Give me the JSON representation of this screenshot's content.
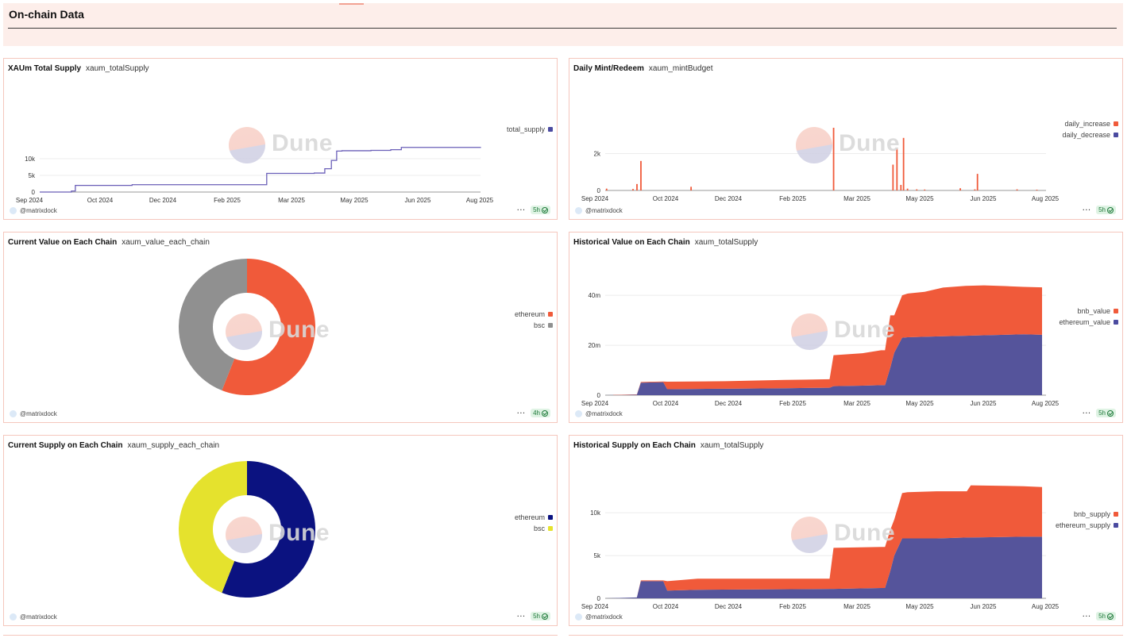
{
  "header": {
    "title": "On-chain Data"
  },
  "footer_user": "@matrixdock",
  "colors": {
    "orange": "#f05a3a",
    "purple": "#5a5a9e",
    "gray": "#909090",
    "navy": "#0b1280",
    "yellow": "#e5e22d",
    "border": "#f5c7bd"
  },
  "months": [
    "Sep 2024",
    "Oct 2024",
    "Dec 2024",
    "Feb 2025",
    "Mar 2025",
    "May 2025",
    "Jun 2025",
    "Aug 2025"
  ],
  "panels": [
    {
      "title": "XAUm Total Supply",
      "query": "xaum_totalSupply",
      "age": "5h",
      "watermark": "Dune",
      "legend": [
        {
          "label": "total_supply",
          "color": "#4b4ba0"
        }
      ],
      "chart_data": {
        "type": "line",
        "ylim": [
          0,
          15000
        ],
        "ticks": [
          "0",
          "5k",
          "10k"
        ],
        "tick_values": [
          0,
          5000,
          10000
        ],
        "series": [
          {
            "name": "total_supply",
            "color": "#6a5fb8",
            "x": [
              "2024-09-01",
              "2024-09-20",
              "2024-09-25",
              "2024-09-28",
              "2024-10-08",
              "2024-11-10",
              "2025-02-18",
              "2025-02-20",
              "2025-03-28",
              "2025-04-05",
              "2025-04-10",
              "2025-04-14",
              "2025-04-18",
              "2025-05-10",
              "2025-05-25",
              "2025-06-02",
              "2025-08-01"
            ],
            "values": [
              0,
              0,
              300,
              2000,
              2000,
              2200,
              2200,
              5600,
              5700,
              7000,
              9500,
              12300,
              12400,
              12500,
              12700,
              13400,
              13500
            ]
          }
        ]
      }
    },
    {
      "title": "Daily Mint/Redeem",
      "query": "xaum_mintBudget",
      "age": "5h",
      "watermark": "Dune",
      "legend": [
        {
          "label": "daily_increase",
          "color": "#f05a3a"
        },
        {
          "label": "daily_decrease",
          "color": "#4b4ba0"
        }
      ],
      "chart_data": {
        "type": "bar",
        "ylim": [
          0,
          3400
        ],
        "ticks": [
          "0",
          "2k"
        ],
        "tick_values": [
          0,
          2000
        ],
        "series": [
          {
            "name": "daily_increase",
            "color": "#f05a3a",
            "x": [
              "2024-09-02",
              "2024-09-22",
              "2024-09-25",
              "2024-09-28",
              "2024-11-05",
              "2025-02-21",
              "2025-04-07",
              "2025-04-10",
              "2025-04-13",
              "2025-04-15",
              "2025-04-18",
              "2025-04-25",
              "2025-05-01",
              "2025-05-28",
              "2025-06-08",
              "2025-06-10",
              "2025-07-10",
              "2025-07-25"
            ],
            "values": [
              100,
              80,
              350,
              1600,
              200,
              3400,
              1400,
              2300,
              300,
              2850,
              100,
              60,
              50,
              120,
              60,
              900,
              60,
              40
            ]
          }
        ]
      }
    },
    {
      "title": "Current Value on Each Chain",
      "query": "xaum_value_each_chain",
      "age": "4h",
      "watermark": "Dune",
      "legend": [
        {
          "label": "ethereum",
          "color": "#f05a3a"
        },
        {
          "label": "bsc",
          "color": "#909090"
        }
      ],
      "chart_data": {
        "type": "pie",
        "donut": true,
        "labels": [
          "ethereum",
          "bsc"
        ],
        "values": [
          56,
          44
        ],
        "colors": [
          "#f05a3a",
          "#909090"
        ]
      }
    },
    {
      "title": "Historical Value on Each Chain",
      "query": "xaum_totalSupply",
      "age": "5h",
      "watermark": "Dune",
      "legend": [
        {
          "label": "bnb_value",
          "color": "#f05a3a"
        },
        {
          "label": "ethereum_value",
          "color": "#4b4ba0"
        }
      ],
      "chart_data": {
        "type": "area",
        "stacked": true,
        "ylim": [
          0,
          48000000
        ],
        "ticks": [
          "0",
          "20m",
          "40m"
        ],
        "tick_values": [
          0,
          20000000,
          40000000
        ],
        "x": [
          "2024-09-01",
          "2024-09-25",
          "2024-09-28",
          "2024-10-15",
          "2024-10-18",
          "2024-12-01",
          "2025-01-15",
          "2025-02-18",
          "2025-02-21",
          "2025-03-15",
          "2025-03-29",
          "2025-04-01",
          "2025-04-05",
          "2025-04-08",
          "2025-04-14",
          "2025-04-18",
          "2025-05-01",
          "2025-05-15",
          "2025-06-01",
          "2025-06-15",
          "2025-07-01",
          "2025-07-15",
          "2025-07-29"
        ],
        "series": [
          {
            "name": "ethereum_value",
            "color": "#55549b",
            "values": [
              0,
              200000,
              5000000,
              5200000,
              2400000,
              2600000,
              2800000,
              3000000,
              3600000,
              3800000,
              4000000,
              4000000,
              11000000,
              17000000,
              23000000,
              23200000,
              23400000,
              23600000,
              23800000,
              24000000,
              24200000,
              24400000,
              24200000
            ]
          },
          {
            "name": "bnb_value",
            "color": "#f05a3a",
            "values": [
              0,
              100000,
              300000,
              300000,
              3000000,
              3000000,
              3300000,
              3400000,
              12400000,
              13000000,
              14000000,
              14000000,
              21000000,
              15000000,
              17000000,
              17500000,
              18000000,
              19500000,
              20000000,
              20000000,
              19500000,
              19000000,
              19000000
            ]
          }
        ]
      }
    },
    {
      "title": "Current Supply on Each Chain",
      "query": "xaum_supply_each_chain",
      "age": "5h",
      "watermark": "Dune",
      "legend": [
        {
          "label": "ethereum",
          "color": "#0b1280"
        },
        {
          "label": "bsc",
          "color": "#e5e22d"
        }
      ],
      "chart_data": {
        "type": "pie",
        "donut": true,
        "labels": [
          "ethereum",
          "bsc"
        ],
        "values": [
          56,
          44
        ],
        "colors": [
          "#0b1280",
          "#e5e22d"
        ]
      }
    },
    {
      "title": "Historical Supply on Each Chain",
      "query": "xaum_totalSupply",
      "age": "5h",
      "watermark": "Dune",
      "legend": [
        {
          "label": "bnb_supply",
          "color": "#f05a3a"
        },
        {
          "label": "ethereum_supply",
          "color": "#4b4ba0"
        }
      ],
      "chart_data": {
        "type": "area",
        "stacked": true,
        "ylim": [
          0,
          14000
        ],
        "ticks": [
          "0",
          "5k",
          "10k"
        ],
        "tick_values": [
          0,
          5000,
          10000
        ],
        "x": [
          "2024-09-01",
          "2024-09-25",
          "2024-09-28",
          "2024-10-15",
          "2024-10-18",
          "2024-11-10",
          "2025-02-18",
          "2025-02-21",
          "2025-03-29",
          "2025-04-01",
          "2025-04-05",
          "2025-04-08",
          "2025-04-14",
          "2025-04-18",
          "2025-05-10",
          "2025-06-02",
          "2025-06-05",
          "2025-07-15",
          "2025-07-29"
        ],
        "series": [
          {
            "name": "ethereum_supply",
            "color": "#55549b",
            "values": [
              0,
              100,
              2000,
              2000,
              900,
              1000,
              1100,
              1100,
              1200,
              1200,
              3200,
              5000,
              7000,
              7000,
              7000,
              7100,
              7100,
              7200,
              7200
            ]
          },
          {
            "name": "bnb_supply",
            "color": "#f05a3a",
            "values": [
              0,
              0,
              100,
              100,
              1100,
              1300,
              1200,
              4800,
              4800,
              4800,
              4800,
              4200,
              5300,
              5400,
              5500,
              5400,
              6100,
              5900,
              5800
            ]
          }
        ]
      }
    }
  ]
}
